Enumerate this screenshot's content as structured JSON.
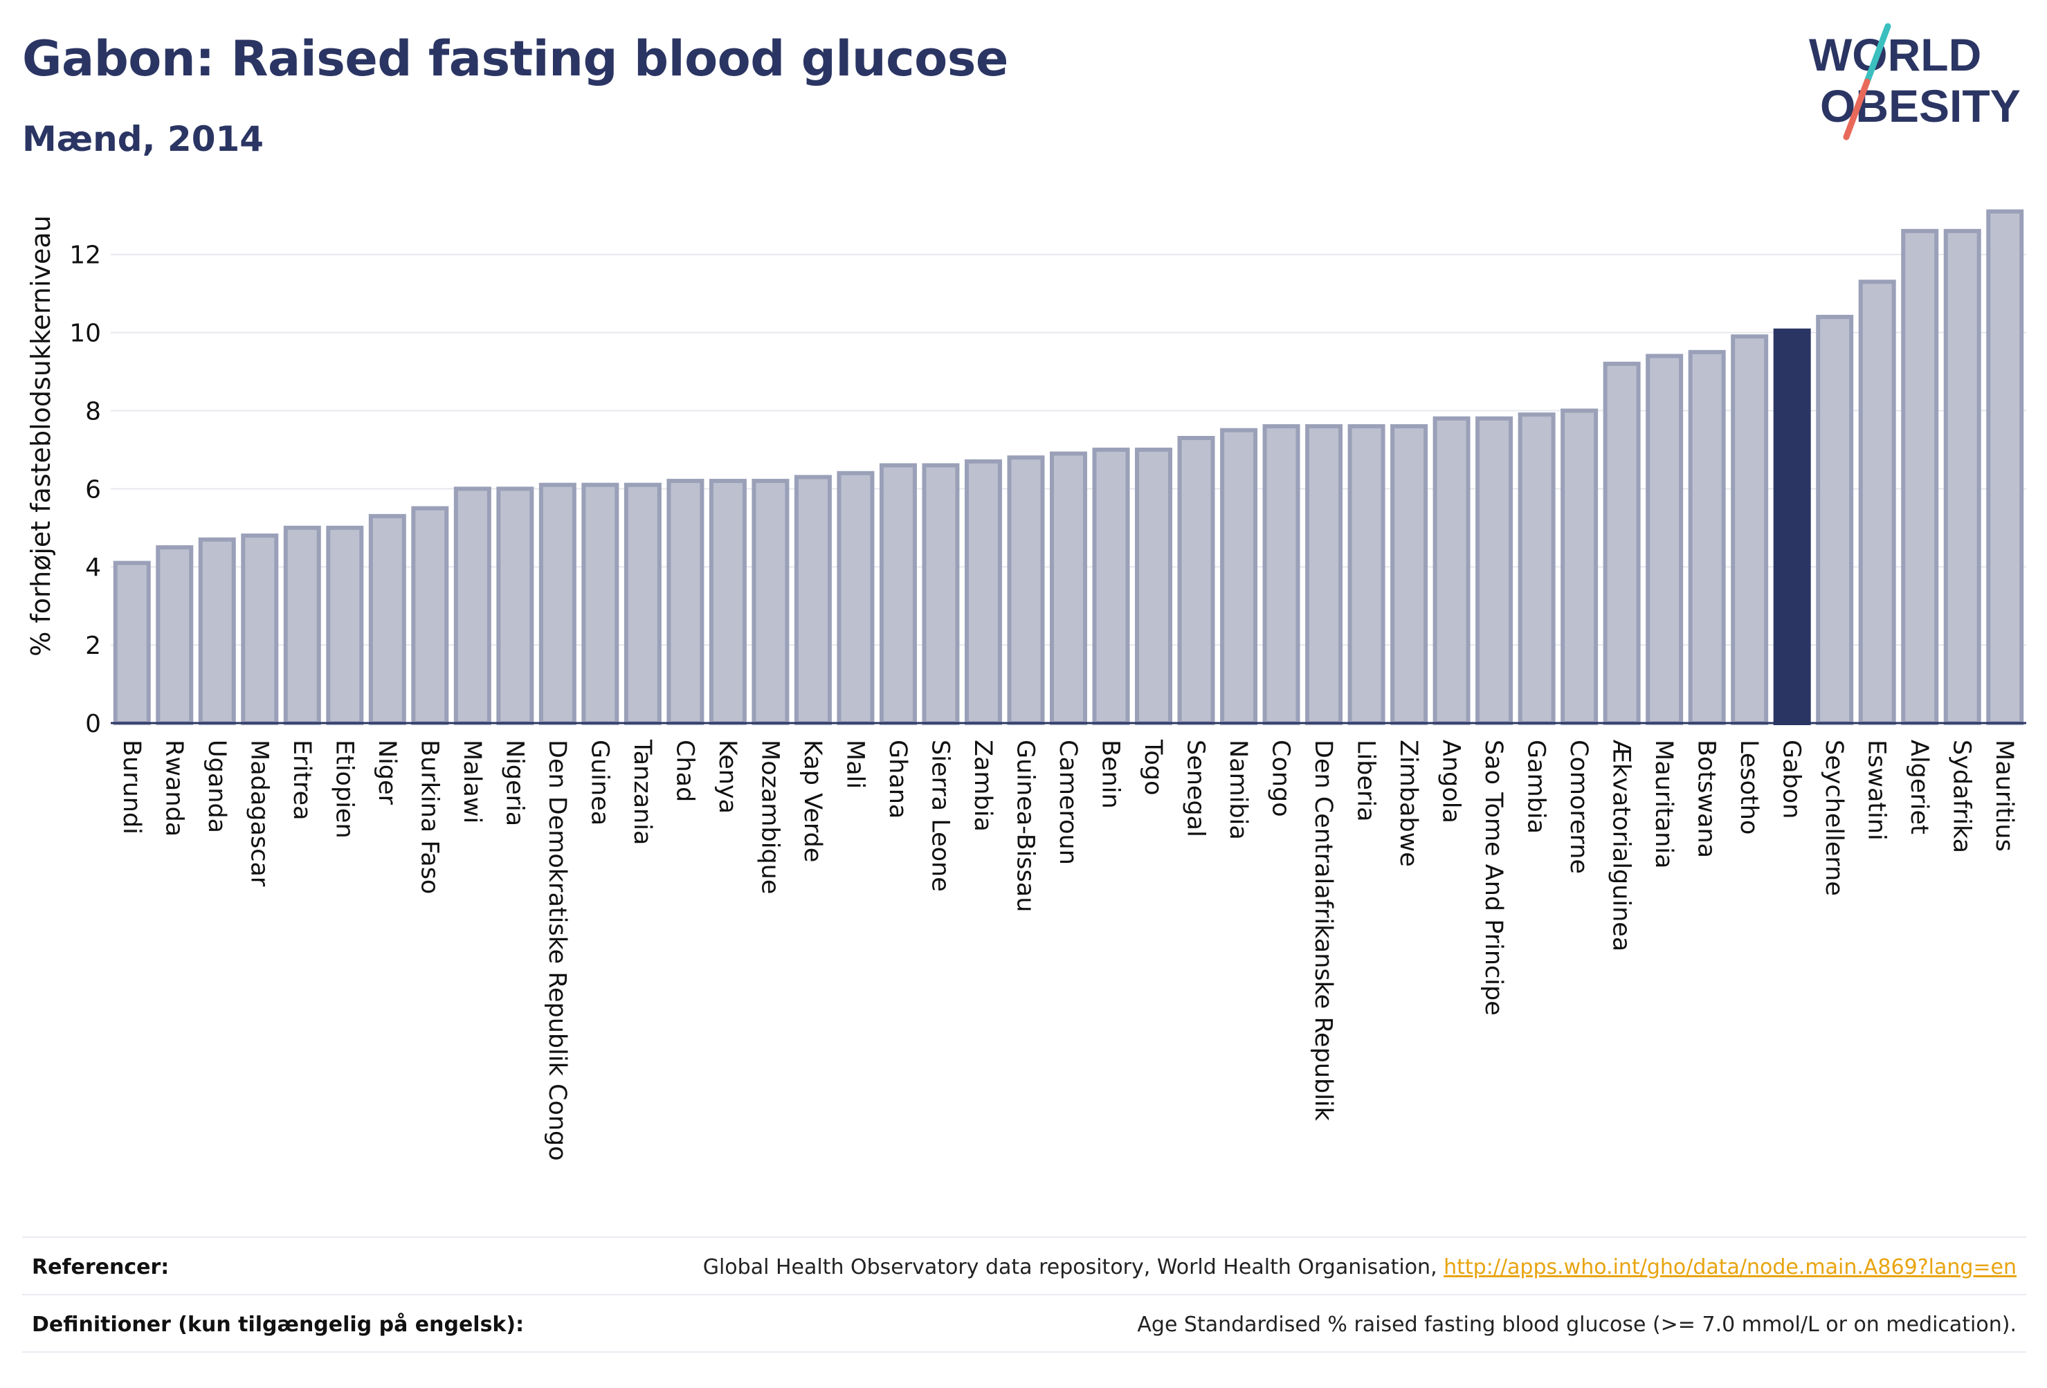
{
  "header": {
    "title": "Gabon: Raised fasting blood glucose",
    "subtitle": "Mænd, 2014"
  },
  "logo": {
    "line1": "WORLD",
    "line2": "OBESITY",
    "colors": {
      "text": "#2b3563",
      "slash_top": "#3bbfbf",
      "slash_bottom": "#e8695a"
    }
  },
  "colors": {
    "bar": "#bcc0cf",
    "bar_stroke": "#9aa0b8",
    "highlight": "#2b3563",
    "grid": "#e6e8ee",
    "axis": "#2b3563"
  },
  "chart_data": {
    "type": "bar",
    "title": "",
    "xlabel": "",
    "ylabel": "% forhøjet fasteblodsukkerniveau",
    "ylim": [
      0,
      13.2
    ],
    "yticks": [
      0,
      2,
      4,
      6,
      8,
      10,
      12
    ],
    "grid": true,
    "highlight": "Gabon",
    "categories": [
      "Burundi",
      "Rwanda",
      "Uganda",
      "Madagascar",
      "Eritrea",
      "Etiopien",
      "Niger",
      "Burkina Faso",
      "Malawi",
      "Nigeria",
      "Den Demokratiske Republik Congo",
      "Guinea",
      "Tanzania",
      "Chad",
      "Kenya",
      "Mozambique",
      "Kap Verde",
      "Mali",
      "Ghana",
      "Sierra Leone",
      "Zambia",
      "Guinea-Bissau",
      "Cameroun",
      "Benin",
      "Togo",
      "Senegal",
      "Namibia",
      "Congo",
      "Den Centralafrikanske Republik",
      "Liberia",
      "Zimbabwe",
      "Angola",
      "Sao Tome And Principe",
      "Gambia",
      "Comorerne",
      "Ækvatorialguinea",
      "Mauritania",
      "Botswana",
      "Lesotho",
      "Gabon",
      "Seychellerne",
      "Eswatini",
      "Algeriet",
      "Sydafrika",
      "Mauritius"
    ],
    "values": [
      4.1,
      4.5,
      4.7,
      4.8,
      5.0,
      5.0,
      5.3,
      5.5,
      6.0,
      6.0,
      6.1,
      6.1,
      6.1,
      6.2,
      6.2,
      6.2,
      6.3,
      6.4,
      6.6,
      6.6,
      6.7,
      6.8,
      6.9,
      7.0,
      7.0,
      7.3,
      7.5,
      7.6,
      7.6,
      7.6,
      7.6,
      7.8,
      7.8,
      7.9,
      8.0,
      9.2,
      9.4,
      9.5,
      9.9,
      10.05,
      10.4,
      11.3,
      12.6,
      12.6,
      13.1
    ]
  },
  "footer": {
    "references_label": "Referencer:",
    "references_text": "Global Health Observatory data repository, World Health Organisation, ",
    "references_link": "http://apps.who.int/gho/data/node.main.A869?lang=en",
    "definitions_label": "Definitioner (kun tilgængelig på engelsk):",
    "definitions_text": "Age Standardised % raised fasting blood glucose (>= 7.0 mmol/L or on medication)."
  }
}
